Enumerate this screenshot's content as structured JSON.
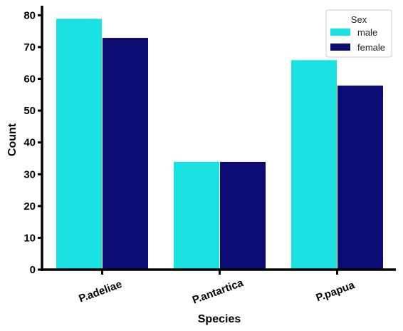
{
  "chart_data": {
    "type": "bar",
    "categories": [
      "P.adeliae",
      "P.antartica",
      "P.papua"
    ],
    "series": [
      {
        "name": "male",
        "values": [
          79,
          34,
          66
        ],
        "color": "#1be1e1"
      },
      {
        "name": "female",
        "values": [
          73,
          34,
          58
        ],
        "color": "#0b0b73"
      }
    ],
    "xlabel": "Species",
    "ylabel": "Count",
    "ylim": [
      0,
      83
    ],
    "yticks": [
      0,
      10,
      20,
      30,
      40,
      50,
      60,
      70,
      80
    ],
    "legend": {
      "title": "Sex",
      "placement": "top-right"
    },
    "grid": false
  }
}
